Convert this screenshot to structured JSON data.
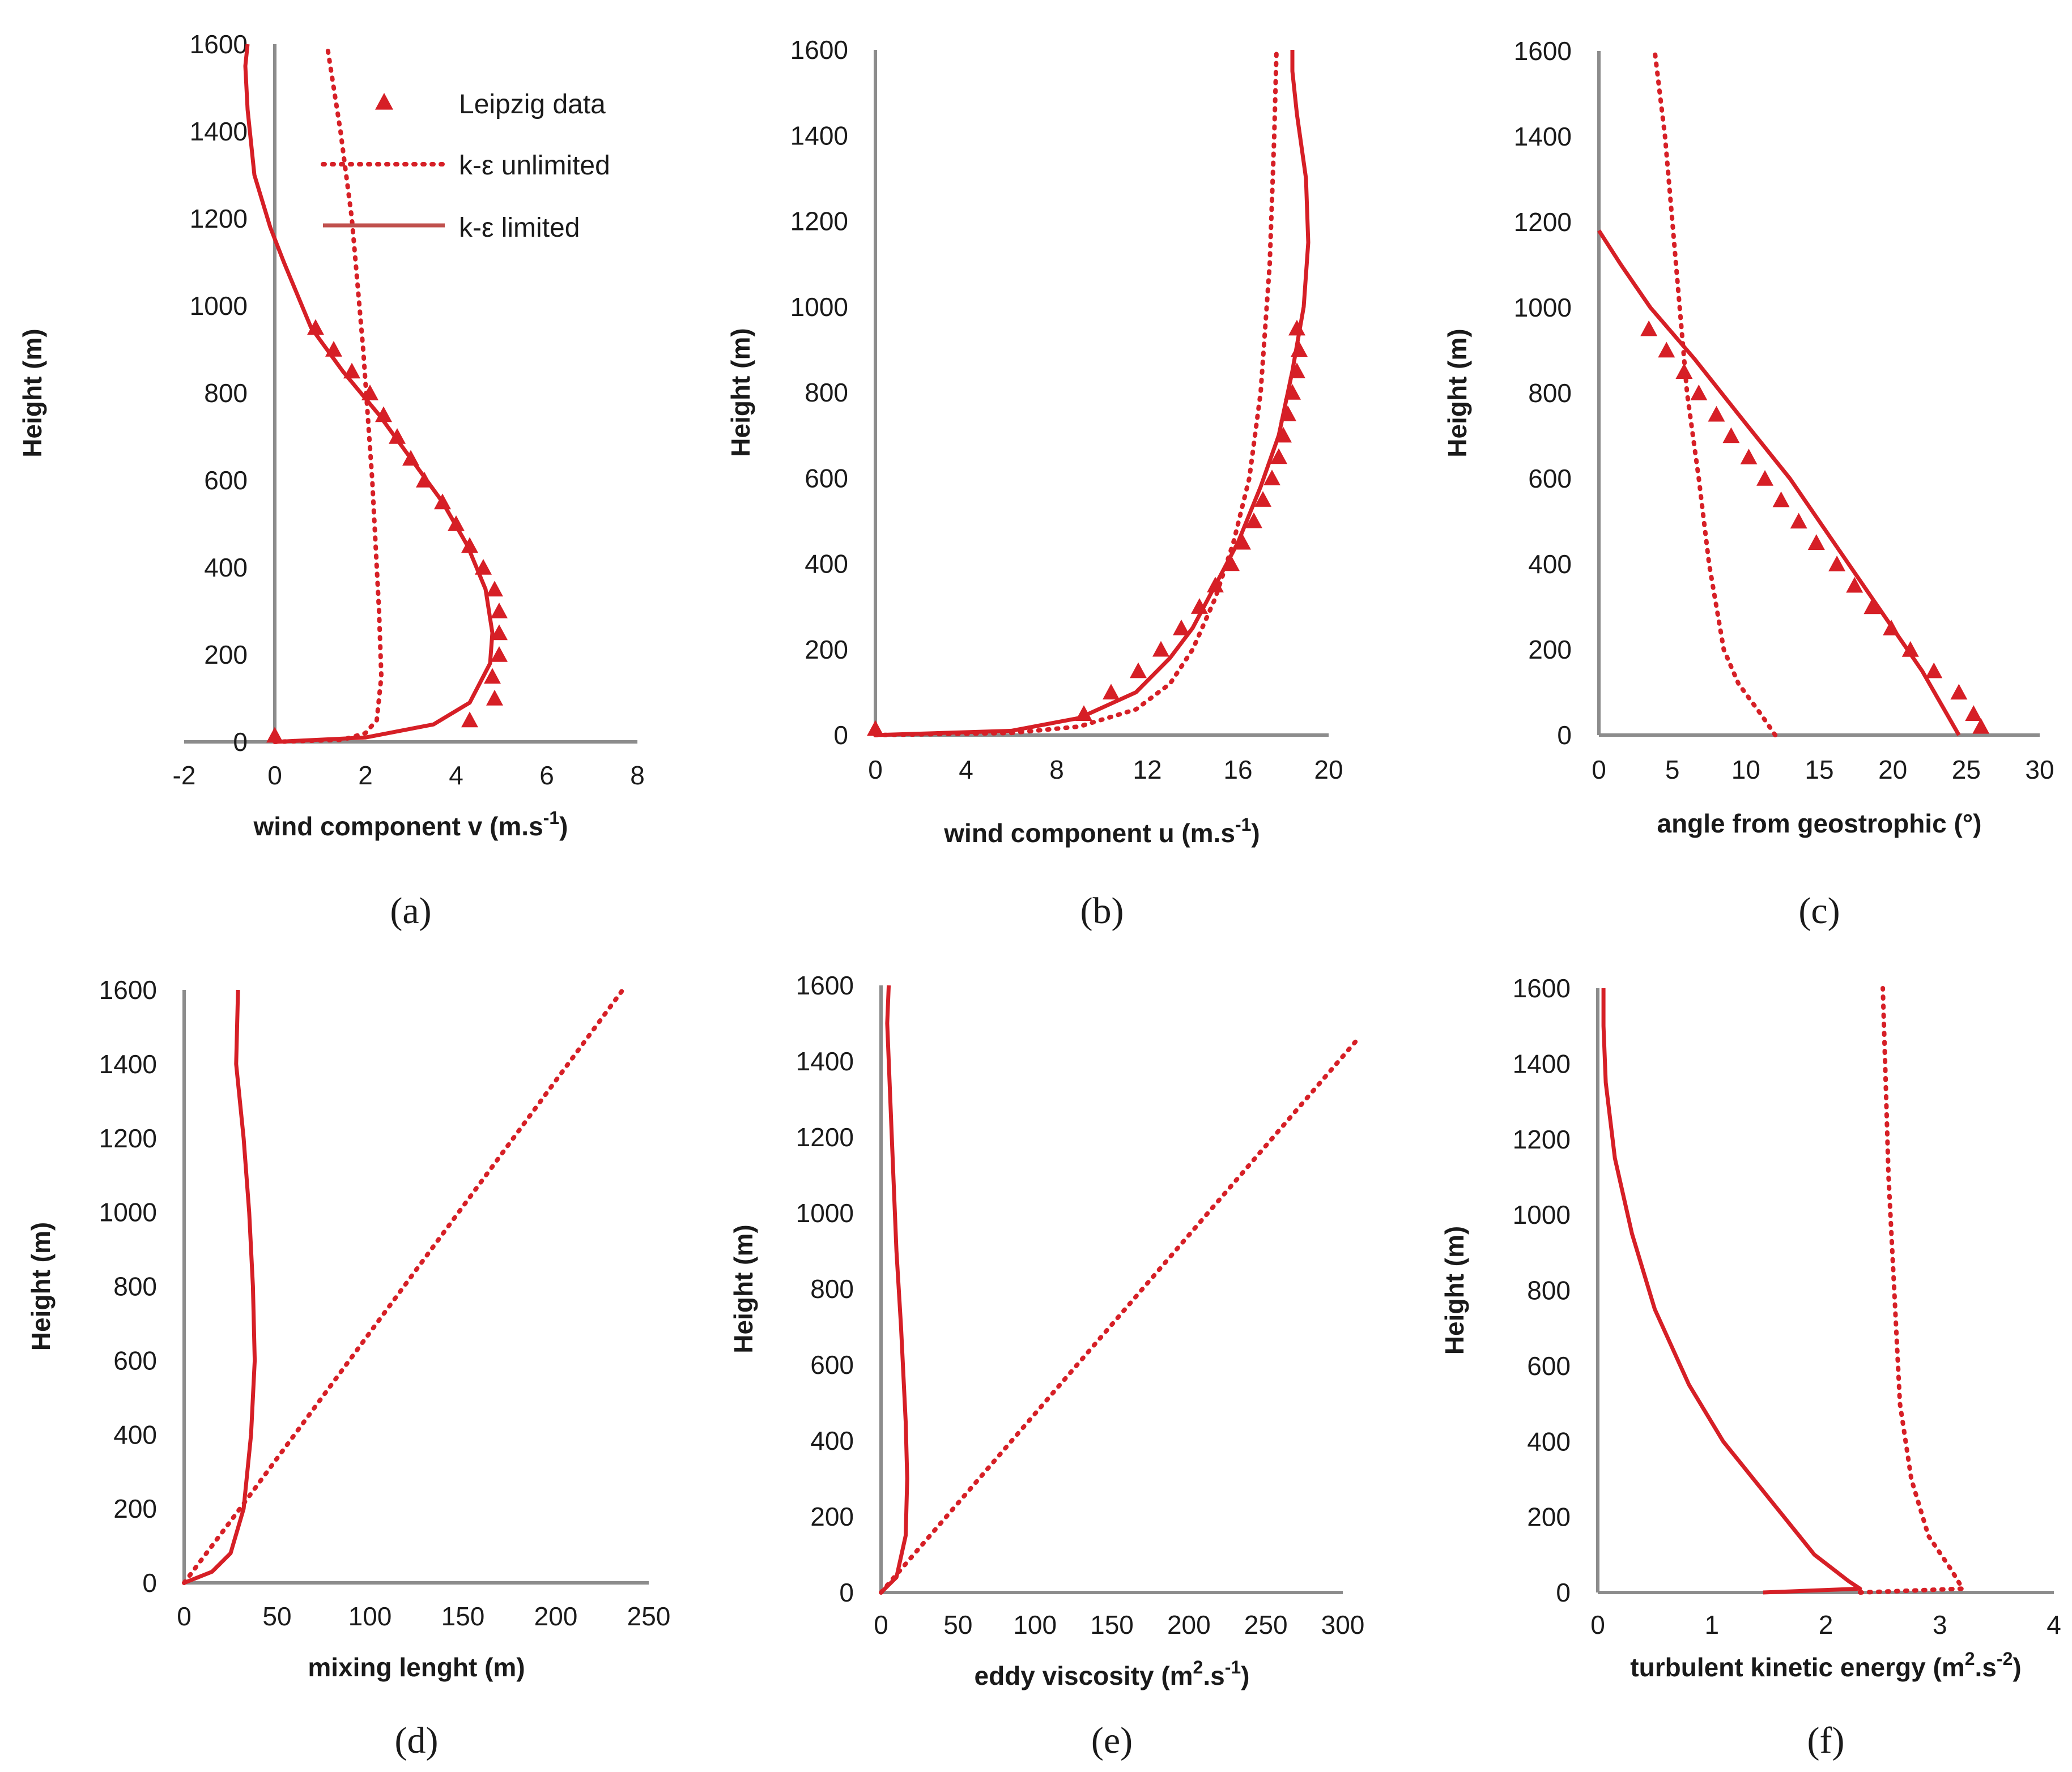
{
  "colors": {
    "series": "#d61f26",
    "series_limited_legend": "#c0504d",
    "axis": "#8c8c8c"
  },
  "legend": {
    "leipzig": "Leipzig data",
    "unlimited": "k-ε unlimited",
    "limited": "k-ε limited"
  },
  "chart_data": [
    {
      "id": "a",
      "type": "line",
      "label": "(a)",
      "xlabel_main": "wind component v (m.s",
      "xlabel_sup": "-1",
      "xlabel_end": ")",
      "ylabel": "Height (m)",
      "xlim": [
        -2,
        8
      ],
      "ylim": [
        0,
        1600
      ],
      "xticks": [
        "-2",
        "0",
        "2",
        "4",
        "6",
        "8"
      ],
      "yticks": [
        "0",
        "200",
        "400",
        "600",
        "800",
        "1000",
        "1200",
        "1400",
        "1600"
      ],
      "series": [
        {
          "name": "k-ε unlimited",
          "style": "dotted",
          "points": [
            [
              0,
              0
            ],
            [
              1.5,
              5
            ],
            [
              2.0,
              20
            ],
            [
              2.25,
              50
            ],
            [
              2.35,
              150
            ],
            [
              2.3,
              300
            ],
            [
              2.15,
              600
            ],
            [
              1.95,
              900
            ],
            [
              1.7,
              1200
            ],
            [
              1.45,
              1400
            ],
            [
              1.15,
              1600
            ]
          ]
        },
        {
          "name": "k-ε limited",
          "style": "solid",
          "points": [
            [
              0,
              0
            ],
            [
              2.0,
              10
            ],
            [
              3.5,
              40
            ],
            [
              4.3,
              90
            ],
            [
              4.75,
              180
            ],
            [
              4.8,
              250
            ],
            [
              4.65,
              350
            ],
            [
              4.25,
              450
            ],
            [
              3.7,
              550
            ],
            [
              3.0,
              650
            ],
            [
              2.3,
              750
            ],
            [
              1.5,
              850
            ],
            [
              0.8,
              950
            ],
            [
              0.2,
              1100
            ],
            [
              -0.1,
              1180
            ],
            [
              -0.45,
              1300
            ],
            [
              -0.6,
              1450
            ],
            [
              -0.65,
              1550
            ],
            [
              -0.6,
              1600
            ]
          ]
        },
        {
          "name": "Leipzig data",
          "style": "markers",
          "points": [
            [
              0,
              15
            ],
            [
              4.3,
              50
            ],
            [
              4.85,
              100
            ],
            [
              4.8,
              150
            ],
            [
              4.95,
              200
            ],
            [
              4.95,
              250
            ],
            [
              4.95,
              300
            ],
            [
              4.85,
              350
            ],
            [
              4.6,
              400
            ],
            [
              4.3,
              450
            ],
            [
              4.0,
              500
            ],
            [
              3.7,
              550
            ],
            [
              3.3,
              600
            ],
            [
              3.0,
              650
            ],
            [
              2.7,
              700
            ],
            [
              2.4,
              750
            ],
            [
              2.1,
              800
            ],
            [
              1.7,
              850
            ],
            [
              1.3,
              900
            ],
            [
              0.9,
              950
            ]
          ]
        }
      ]
    },
    {
      "id": "b",
      "type": "line",
      "label": "(b)",
      "xlabel_main": "wind component u (m.s",
      "xlabel_sup": "-1",
      "xlabel_end": ")",
      "ylabel": "Height (m)",
      "xlim": [
        0,
        20
      ],
      "ylim": [
        0,
        1600
      ],
      "xticks": [
        "0",
        "4",
        "8",
        "12",
        "16",
        "20"
      ],
      "yticks": [
        "0",
        "200",
        "400",
        "600",
        "800",
        "1000",
        "1200",
        "1400",
        "1600"
      ],
      "series": [
        {
          "name": "k-ε unlimited",
          "style": "dotted",
          "points": [
            [
              0,
              0
            ],
            [
              6,
              5
            ],
            [
              9,
              20
            ],
            [
              11.5,
              60
            ],
            [
              13,
              120
            ],
            [
              14,
              200
            ],
            [
              15,
              320
            ],
            [
              15.8,
              450
            ],
            [
              16.5,
              600
            ],
            [
              17,
              800
            ],
            [
              17.4,
              1100
            ],
            [
              17.6,
              1400
            ],
            [
              17.7,
              1600
            ]
          ]
        },
        {
          "name": "k-ε limited",
          "style": "solid",
          "points": [
            [
              0,
              0
            ],
            [
              6,
              10
            ],
            [
              9,
              40
            ],
            [
              11.5,
              100
            ],
            [
              13,
              180
            ],
            [
              14,
              250
            ],
            [
              15,
              350
            ],
            [
              16,
              450
            ],
            [
              17,
              580
            ],
            [
              17.8,
              700
            ],
            [
              18.4,
              850
            ],
            [
              18.9,
              1000
            ],
            [
              19.1,
              1150
            ],
            [
              19.0,
              1300
            ],
            [
              18.6,
              1450
            ],
            [
              18.4,
              1550
            ],
            [
              18.4,
              1600
            ]
          ]
        },
        {
          "name": "Leipzig data",
          "style": "markers",
          "points": [
            [
              0,
              15
            ],
            [
              9.2,
              50
            ],
            [
              10.4,
              100
            ],
            [
              11.6,
              150
            ],
            [
              12.6,
              200
            ],
            [
              13.5,
              250
            ],
            [
              14.3,
              300
            ],
            [
              15.0,
              350
            ],
            [
              15.7,
              400
            ],
            [
              16.2,
              450
            ],
            [
              16.7,
              500
            ],
            [
              17.1,
              550
            ],
            [
              17.5,
              600
            ],
            [
              17.8,
              650
            ],
            [
              18.0,
              700
            ],
            [
              18.2,
              750
            ],
            [
              18.4,
              800
            ],
            [
              18.6,
              850
            ],
            [
              18.7,
              900
            ],
            [
              18.6,
              950
            ]
          ]
        }
      ]
    },
    {
      "id": "c",
      "type": "line",
      "label": "(c)",
      "xlabel_main": "angle from geostrophic (°)",
      "xlabel_sup": "",
      "xlabel_end": "",
      "ylabel": "Height (m)",
      "xlim": [
        0,
        30
      ],
      "ylim": [
        0,
        1600
      ],
      "xticks": [
        "0",
        "5",
        "10",
        "15",
        "20",
        "25",
        "30"
      ],
      "yticks": [
        "0",
        "200",
        "400",
        "600",
        "800",
        "1000",
        "1200",
        "1400",
        "1600"
      ],
      "series": [
        {
          "name": "k-ε unlimited",
          "style": "dotted",
          "points": [
            [
              12,
              0
            ],
            [
              11,
              50
            ],
            [
              9.5,
              120
            ],
            [
              8.5,
              200
            ],
            [
              7.5,
              400
            ],
            [
              6.8,
              600
            ],
            [
              6,
              800
            ],
            [
              5.5,
              1000
            ],
            [
              5,
              1200
            ],
            [
              4.5,
              1400
            ],
            [
              3.8,
              1600
            ]
          ]
        },
        {
          "name": "k-ε limited",
          "style": "solid",
          "points": [
            [
              24.5,
              0
            ],
            [
              22,
              150
            ],
            [
              19,
              300
            ],
            [
              16,
              450
            ],
            [
              13,
              600
            ],
            [
              9.5,
              750
            ],
            [
              6.5,
              880
            ],
            [
              3.5,
              1000
            ],
            [
              1.5,
              1100
            ],
            [
              0,
              1180
            ]
          ]
        },
        {
          "name": "Leipzig data",
          "style": "markers",
          "points": [
            [
              26,
              20
            ],
            [
              25.5,
              50
            ],
            [
              24.5,
              100
            ],
            [
              22.8,
              150
            ],
            [
              21.2,
              200
            ],
            [
              19.9,
              250
            ],
            [
              18.6,
              300
            ],
            [
              17.4,
              350
            ],
            [
              16.2,
              400
            ],
            [
              14.8,
              450
            ],
            [
              13.6,
              500
            ],
            [
              12.4,
              550
            ],
            [
              11.3,
              600
            ],
            [
              10.2,
              650
            ],
            [
              9.0,
              700
            ],
            [
              8.0,
              750
            ],
            [
              6.8,
              800
            ],
            [
              5.8,
              850
            ],
            [
              4.6,
              900
            ],
            [
              3.4,
              950
            ]
          ]
        }
      ]
    },
    {
      "id": "d",
      "type": "line",
      "label": "(d)",
      "xlabel_main": "mixing lenght (m)",
      "xlabel_sup": "",
      "xlabel_end": "",
      "ylabel": "Height (m)",
      "xlim": [
        0,
        250
      ],
      "ylim": [
        0,
        1600
      ],
      "xticks": [
        "0",
        "50",
        "100",
        "150",
        "200",
        "250"
      ],
      "yticks": [
        "0",
        "200",
        "400",
        "600",
        "800",
        "1000",
        "1200",
        "1400",
        "1600"
      ],
      "series": [
        {
          "name": "k-ε unlimited",
          "style": "dotted",
          "points": [
            [
              0,
              0
            ],
            [
              30,
              200
            ],
            [
              236,
              1600
            ]
          ]
        },
        {
          "name": "k-ε limited",
          "style": "solid",
          "points": [
            [
              0,
              0
            ],
            [
              15,
              30
            ],
            [
              25,
              80
            ],
            [
              32,
              200
            ],
            [
              36,
              400
            ],
            [
              38,
              600
            ],
            [
              37,
              800
            ],
            [
              35,
              1000
            ],
            [
              32,
              1200
            ],
            [
              28,
              1400
            ],
            [
              29,
              1600
            ]
          ]
        }
      ]
    },
    {
      "id": "e",
      "type": "line",
      "label": "(e)",
      "xlabel_main": "eddy viscosity (m",
      "xlabel_sup": "2",
      "xlabel_end": ".s",
      "xlabel_sup2": "-1",
      "xlabel_end2": ")",
      "ylabel": "Height (m)",
      "xlim": [
        0,
        300
      ],
      "ylim": [
        0,
        1600
      ],
      "xticks": [
        "0",
        "50",
        "100",
        "150",
        "200",
        "250",
        "300"
      ],
      "yticks": [
        "0",
        "200",
        "400",
        "600",
        "800",
        "1000",
        "1200",
        "1400",
        "1600"
      ],
      "series": [
        {
          "name": "k-ε unlimited",
          "style": "dotted",
          "points": [
            [
              0,
              0
            ],
            [
              310,
              1460
            ]
          ]
        },
        {
          "name": "k-ε limited",
          "style": "solid",
          "points": [
            [
              0,
              0
            ],
            [
              10,
              40
            ],
            [
              16,
              150
            ],
            [
              17,
              300
            ],
            [
              16,
              450
            ],
            [
              13,
              700
            ],
            [
              10,
              900
            ],
            [
              8,
              1100
            ],
            [
              6,
              1300
            ],
            [
              4,
              1500
            ],
            [
              5,
              1600
            ]
          ]
        }
      ]
    },
    {
      "id": "f",
      "type": "line",
      "label": "(f)",
      "xlabel_main": "turbulent kinetic energy (m",
      "xlabel_sup": "2",
      "xlabel_end": ".s",
      "xlabel_sup2": "-2",
      "xlabel_end2": ")",
      "ylabel": "Height (m)",
      "xlim": [
        0,
        4
      ],
      "ylim": [
        0,
        1600
      ],
      "xticks": [
        "0",
        "1",
        "2",
        "3",
        "4"
      ],
      "yticks": [
        "0",
        "200",
        "400",
        "600",
        "800",
        "1000",
        "1200",
        "1400",
        "1600"
      ],
      "series": [
        {
          "name": "k-ε unlimited",
          "style": "dotted",
          "points": [
            [
              2.3,
              0
            ],
            [
              3.2,
              10
            ],
            [
              3.1,
              60
            ],
            [
              2.9,
              150
            ],
            [
              2.75,
              300
            ],
            [
              2.65,
              500
            ],
            [
              2.6,
              800
            ],
            [
              2.55,
              1100
            ],
            [
              2.52,
              1400
            ],
            [
              2.5,
              1600
            ]
          ]
        },
        {
          "name": "k-ε limited",
          "style": "solid",
          "points": [
            [
              1.45,
              0
            ],
            [
              2.3,
              10
            ],
            [
              2.2,
              30
            ],
            [
              1.9,
              100
            ],
            [
              1.5,
              250
            ],
            [
              1.1,
              400
            ],
            [
              0.8,
              550
            ],
            [
              0.5,
              750
            ],
            [
              0.3,
              950
            ],
            [
              0.15,
              1150
            ],
            [
              0.07,
              1350
            ],
            [
              0.05,
              1500
            ],
            [
              0.05,
              1600
            ]
          ]
        }
      ]
    }
  ]
}
